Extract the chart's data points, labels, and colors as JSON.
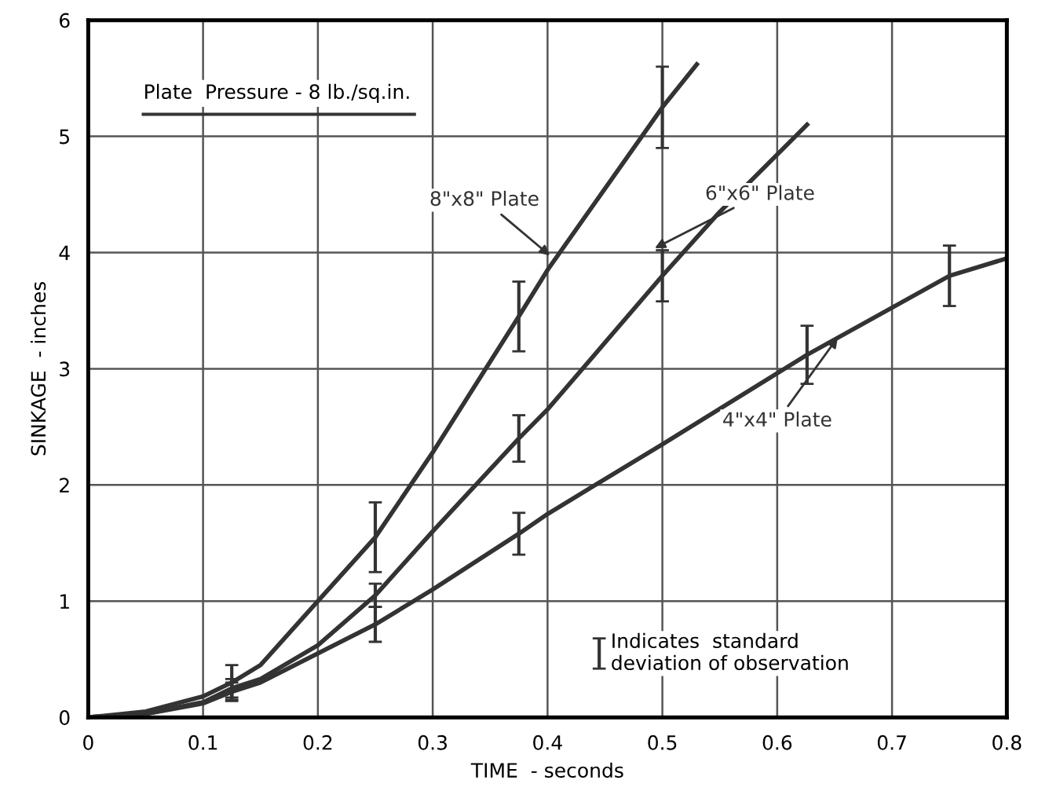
{
  "chart_data": {
    "type": "line",
    "xlabel": "TIME  - seconds",
    "ylabel": "SINKAGE  - inches",
    "xlim": [
      0,
      0.8
    ],
    "ylim": [
      0,
      6
    ],
    "xticks": [
      0,
      0.1,
      0.2,
      0.3,
      0.4,
      0.5,
      0.6,
      0.7,
      0.8
    ],
    "yticks": [
      0,
      1,
      2,
      3,
      4,
      5,
      6
    ],
    "grid": true,
    "legend": false,
    "marker": "none",
    "line_style": "solid",
    "annotations": [
      "Plate  Pressure - 8 lb./sq.in.",
      "Indicates  standard\ndeviation of observation"
    ],
    "series": [
      {
        "name": "8\"x8\" Plate",
        "color": "#333333",
        "x": [
          0,
          0.05,
          0.1,
          0.125,
          0.15,
          0.2,
          0.25,
          0.3,
          0.375,
          0.4,
          0.45,
          0.5,
          0.53
        ],
        "values": [
          0,
          0.05,
          0.18,
          0.3,
          0.45,
          1.0,
          1.55,
          2.28,
          3.45,
          3.85,
          4.55,
          5.25,
          5.62
        ],
        "errors": [
          null,
          null,
          null,
          0.15,
          null,
          null,
          0.3,
          null,
          0.3,
          null,
          null,
          0.35,
          null
        ]
      },
      {
        "name": "6\"x6\" Plate",
        "color": "#333333",
        "x": [
          0,
          0.05,
          0.1,
          0.125,
          0.15,
          0.2,
          0.25,
          0.3,
          0.375,
          0.4,
          0.5,
          0.55,
          0.626
        ],
        "values": [
          0,
          0.03,
          0.13,
          0.25,
          0.33,
          0.62,
          1.05,
          1.6,
          2.4,
          2.65,
          3.8,
          4.35,
          5.1
        ],
        "errors": [
          null,
          null,
          null,
          0.08,
          null,
          null,
          0.1,
          null,
          0.2,
          null,
          0.22,
          null,
          null
        ]
      },
      {
        "name": "4\"x4\" Plate",
        "color": "#333333",
        "x": [
          0,
          0.05,
          0.1,
          0.125,
          0.15,
          0.2,
          0.25,
          0.3,
          0.375,
          0.4,
          0.5,
          0.626,
          0.75,
          0.8
        ],
        "values": [
          0,
          0.03,
          0.12,
          0.22,
          0.3,
          0.55,
          0.8,
          1.1,
          1.58,
          1.75,
          2.35,
          3.12,
          3.8,
          3.95
        ],
        "errors": [
          null,
          null,
          null,
          0.08,
          null,
          null,
          0.15,
          null,
          0.18,
          null,
          null,
          0.25,
          0.26,
          null
        ]
      }
    ]
  }
}
